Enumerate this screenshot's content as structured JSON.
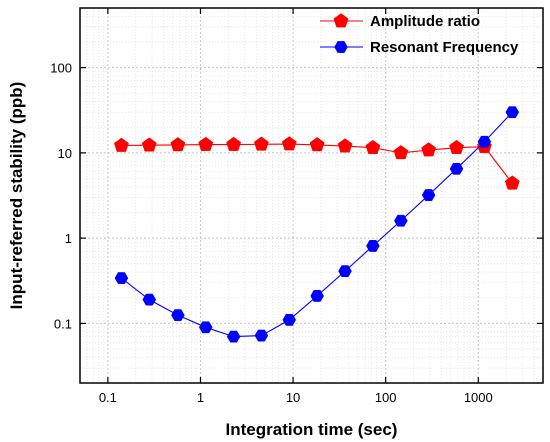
{
  "chart_data": {
    "type": "line",
    "xlabel": "Integration time (sec)",
    "ylabel": "Input-referred stability (ppb)",
    "x_scale": "log",
    "y_scale": "log",
    "xlim": [
      0.05,
      5000
    ],
    "ylim": [
      0.02,
      500
    ],
    "x_ticks": [
      0.1,
      1,
      10,
      100,
      1000
    ],
    "x_tick_labels": [
      "0.1",
      "1",
      "10",
      "100",
      "1000"
    ],
    "y_ticks": [
      0.1,
      1,
      10,
      100
    ],
    "y_tick_labels": [
      "0.1",
      "1",
      "10",
      "100"
    ],
    "grid": true,
    "legend_position": "top-right",
    "series": [
      {
        "name": "Amplitude ratio",
        "color": "#ff0000",
        "marker": "pentagon",
        "x": [
          0.14,
          0.28,
          0.57,
          1.14,
          2.28,
          4.55,
          9.1,
          18.2,
          36.4,
          72.8,
          146,
          291,
          582,
          1165,
          2330
        ],
        "y": [
          12.2,
          12.3,
          12.4,
          12.5,
          12.5,
          12.6,
          12.7,
          12.4,
          12.0,
          11.5,
          10.0,
          10.8,
          11.5,
          11.8,
          4.4
        ]
      },
      {
        "name": "Resonant Frequency",
        "color": "#0000ff",
        "marker": "hexagon",
        "x": [
          0.14,
          0.28,
          0.57,
          1.14,
          2.28,
          4.55,
          9.1,
          18.2,
          36.4,
          72.8,
          146,
          291,
          582,
          1165,
          2330
        ],
        "y": [
          0.34,
          0.19,
          0.125,
          0.09,
          0.07,
          0.072,
          0.11,
          0.21,
          0.41,
          0.81,
          1.6,
          3.2,
          6.5,
          13.5,
          30.0
        ]
      }
    ]
  }
}
